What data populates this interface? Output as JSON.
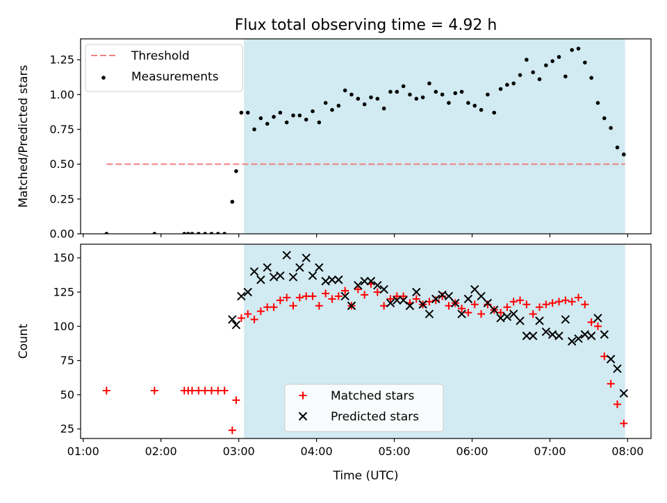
{
  "chart_data": [
    {
      "type": "scatter",
      "title": "Flux total observing time = 4.92 h",
      "xlabel": "",
      "ylabel": "Matched/Predicted stars",
      "xlim": [
        "00:58",
        "08:18"
      ],
      "ylim": [
        0,
        1.4
      ],
      "yticks": [
        0.0,
        0.25,
        0.5,
        0.75,
        1.0,
        1.25
      ],
      "ytick_labels": [
        "0.00",
        "0.25",
        "0.50",
        "0.75",
        "1.00",
        "1.25"
      ],
      "shaded_x": [
        "03:04",
        "07:58"
      ],
      "shade_color": "#add8e6",
      "legend_position": "upper left",
      "legend": [
        {
          "label": "Threshold",
          "style": "dashed-line",
          "color": "#f08080"
        },
        {
          "label": "Measurements",
          "style": "dot",
          "color": "#000000"
        }
      ],
      "threshold": {
        "name": "Threshold",
        "value": 0.5,
        "x": [
          "01:18",
          "07:58"
        ],
        "color": "#f08080"
      },
      "series": [
        {
          "name": "Measurements",
          "color": "#000000",
          "marker": "dot",
          "x": [
            "01:18",
            "01:55",
            "02:18",
            "02:21",
            "02:24",
            "02:29",
            "02:34",
            "02:39",
            "02:44",
            "02:49",
            "02:55",
            "02:58",
            "03:02",
            "03:07",
            "03:12",
            "03:17",
            "03:22",
            "03:27",
            "03:32",
            "03:37",
            "03:42",
            "03:47",
            "03:52",
            "03:57",
            "04:02",
            "04:07",
            "04:12",
            "04:17",
            "04:22",
            "04:27",
            "04:32",
            "04:37",
            "04:42",
            "04:47",
            "04:52",
            "04:57",
            "05:02",
            "05:07",
            "05:12",
            "05:17",
            "05:22",
            "05:27",
            "05:32",
            "05:37",
            "05:42",
            "05:47",
            "05:52",
            "05:57",
            "06:02",
            "06:07",
            "06:12",
            "06:17",
            "06:22",
            "06:27",
            "06:32",
            "06:37",
            "06:42",
            "06:47",
            "06:52",
            "06:57",
            "07:02",
            "07:07",
            "07:12",
            "07:17",
            "07:22",
            "07:27",
            "07:32",
            "07:37",
            "07:42",
            "07:47",
            "07:52",
            "07:57"
          ],
          "y": [
            0.0,
            0.0,
            0.0,
            0.0,
            0.0,
            0.0,
            0.0,
            0.0,
            0.0,
            0.0,
            0.23,
            0.45,
            0.87,
            0.87,
            0.75,
            0.83,
            0.79,
            0.84,
            0.87,
            0.8,
            0.85,
            0.85,
            0.82,
            0.88,
            0.8,
            0.94,
            0.89,
            0.92,
            1.03,
            1.0,
            0.97,
            0.93,
            0.98,
            0.97,
            0.9,
            1.02,
            1.02,
            1.06,
            1.0,
            0.97,
            0.98,
            1.08,
            1.02,
            1.0,
            0.94,
            1.01,
            1.02,
            0.94,
            0.92,
            0.89,
            1.0,
            0.87,
            1.04,
            1.07,
            1.08,
            1.14,
            1.25,
            1.16,
            1.11,
            1.21,
            1.24,
            1.27,
            1.13,
            1.32,
            1.33,
            1.23,
            1.12,
            0.94,
            0.83,
            0.76,
            0.62,
            0.57
          ]
        }
      ]
    },
    {
      "type": "scatter",
      "title": "",
      "xlabel": "Time (UTC)",
      "ylabel": "Count",
      "xlim": [
        "00:58",
        "08:18"
      ],
      "ylim": [
        18,
        160
      ],
      "yticks": [
        25,
        50,
        75,
        100,
        125,
        150
      ],
      "ytick_labels": [
        "25",
        "50",
        "75",
        "100",
        "125",
        "150"
      ],
      "xticks": [
        "01:00",
        "02:00",
        "03:00",
        "04:00",
        "05:00",
        "06:00",
        "07:00",
        "08:00"
      ],
      "xtick_labels": [
        "01:00",
        "02:00",
        "03:00",
        "04:00",
        "05:00",
        "06:00",
        "07:00",
        "08:00"
      ],
      "shaded_x": [
        "03:04",
        "07:58"
      ],
      "shade_color": "#add8e6",
      "legend_position": "lower center",
      "legend": [
        {
          "label": "Matched stars",
          "style": "plus",
          "color": "#ff0000"
        },
        {
          "label": "Predicted stars",
          "style": "cross",
          "color": "#000000"
        }
      ],
      "series": [
        {
          "name": "Matched stars",
          "color": "#ff0000",
          "marker": "plus",
          "x": [
            "01:18",
            "01:55",
            "02:18",
            "02:21",
            "02:24",
            "02:29",
            "02:34",
            "02:39",
            "02:44",
            "02:49",
            "02:55",
            "02:58",
            "03:02",
            "03:07",
            "03:12",
            "03:17",
            "03:22",
            "03:27",
            "03:32",
            "03:37",
            "03:42",
            "03:47",
            "03:52",
            "03:57",
            "04:02",
            "04:07",
            "04:12",
            "04:17",
            "04:22",
            "04:27",
            "04:32",
            "04:37",
            "04:42",
            "04:47",
            "04:52",
            "04:57",
            "05:02",
            "05:07",
            "05:12",
            "05:17",
            "05:22",
            "05:27",
            "05:32",
            "05:37",
            "05:42",
            "05:47",
            "05:52",
            "05:57",
            "06:02",
            "06:07",
            "06:12",
            "06:17",
            "06:22",
            "06:27",
            "06:32",
            "06:37",
            "06:42",
            "06:47",
            "06:52",
            "06:57",
            "07:02",
            "07:07",
            "07:12",
            "07:17",
            "07:22",
            "07:27",
            "07:32",
            "07:37",
            "07:42",
            "07:47",
            "07:52",
            "07:57"
          ],
          "y": [
            53,
            53,
            53,
            53,
            53,
            53,
            53,
            53,
            53,
            53,
            24,
            46,
            106,
            109,
            105,
            111,
            114,
            114,
            119,
            121,
            115,
            121,
            122,
            122,
            115,
            124,
            120,
            122,
            126,
            115,
            127,
            123,
            131,
            125,
            115,
            120,
            122,
            122,
            117,
            120,
            116,
            118,
            119,
            122,
            115,
            117,
            113,
            110,
            116,
            109,
            116,
            112,
            110,
            114,
            118,
            119,
            116,
            109,
            114,
            116,
            117,
            118,
            119,
            118,
            121,
            116,
            103,
            100,
            78,
            58,
            43,
            29
          ]
        },
        {
          "name": "Predicted stars",
          "color": "#000000",
          "marker": "cross",
          "x": [
            "02:55",
            "02:58",
            "03:02",
            "03:07",
            "03:12",
            "03:17",
            "03:22",
            "03:27",
            "03:32",
            "03:37",
            "03:42",
            "03:47",
            "03:52",
            "03:57",
            "04:02",
            "04:07",
            "04:12",
            "04:17",
            "04:22",
            "04:27",
            "04:32",
            "04:37",
            "04:42",
            "04:47",
            "04:52",
            "04:57",
            "05:02",
            "05:07",
            "05:12",
            "05:17",
            "05:22",
            "05:27",
            "05:32",
            "05:37",
            "05:42",
            "05:47",
            "05:52",
            "05:57",
            "06:02",
            "06:07",
            "06:12",
            "06:17",
            "06:22",
            "06:27",
            "06:32",
            "06:37",
            "06:42",
            "06:47",
            "06:52",
            "06:57",
            "07:02",
            "07:07",
            "07:12",
            "07:17",
            "07:22",
            "07:27",
            "07:32",
            "07:37",
            "07:42",
            "07:47",
            "07:52",
            "07:57"
          ],
          "y": [
            105,
            101,
            122,
            125,
            140,
            134,
            143,
            136,
            137,
            152,
            136,
            143,
            150,
            137,
            143,
            133,
            134,
            134,
            122,
            115,
            130,
            133,
            133,
            130,
            127,
            117,
            119,
            119,
            115,
            125,
            116,
            109,
            120,
            123,
            122,
            117,
            109,
            120,
            127,
            122,
            117,
            112,
            106,
            107,
            109,
            104,
            93,
            93,
            104,
            96,
            94,
            93,
            105,
            89,
            91,
            94,
            93,
            106,
            94,
            76,
            69,
            51
          ]
        }
      ]
    }
  ]
}
